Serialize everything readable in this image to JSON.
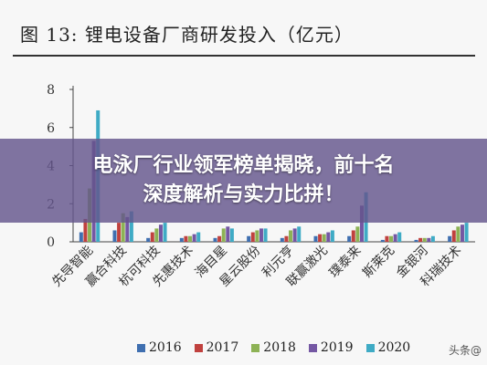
{
  "banner": {
    "line1": "电泳厂行业领军榜单揭晓，前十名",
    "line2": "深度解析与实力比拼！"
  },
  "watermark": "头条@",
  "colors": {
    "2016": "#3f6fb0",
    "2017": "#c0413e",
    "2018": "#8db255",
    "2019": "#7457a3",
    "2020": "#3fabc5"
  },
  "chart_data": {
    "type": "bar",
    "title": "图 13: 锂电设备厂商研发投入（亿元）",
    "xlabel": "",
    "ylabel": "",
    "ylim": [
      0,
      8
    ],
    "yticks": [
      0,
      2,
      4,
      6,
      8
    ],
    "categories": [
      "先导智能",
      "赢合科技",
      "杭可科技",
      "先惠技术",
      "海目星",
      "星云股份",
      "利元亨",
      "联赢激光",
      "璞泰来",
      "斯莱克",
      "金银河",
      "科瑞技术"
    ],
    "series": [
      {
        "name": "2016",
        "values": [
          0.5,
          0.6,
          0.2,
          0.2,
          0.2,
          0.3,
          0.2,
          0.3,
          0.3,
          0.1,
          0.1,
          0.3
        ]
      },
      {
        "name": "2017",
        "values": [
          1.2,
          1.0,
          0.5,
          0.3,
          0.3,
          0.5,
          0.3,
          0.4,
          0.6,
          0.3,
          0.2,
          0.6
        ]
      },
      {
        "name": "2018",
        "values": [
          2.8,
          1.5,
          0.7,
          0.3,
          0.7,
          0.6,
          0.6,
          0.4,
          0.8,
          0.3,
          0.2,
          0.8
        ]
      },
      {
        "name": "2019",
        "values": [
          5.3,
          1.3,
          0.9,
          0.4,
          0.8,
          0.7,
          0.7,
          0.5,
          1.9,
          0.4,
          0.2,
          0.9
        ]
      },
      {
        "name": "2020",
        "values": [
          6.9,
          1.6,
          1.0,
          0.5,
          0.7,
          0.7,
          0.8,
          0.6,
          2.6,
          0.5,
          0.3,
          1.0
        ]
      }
    ]
  }
}
